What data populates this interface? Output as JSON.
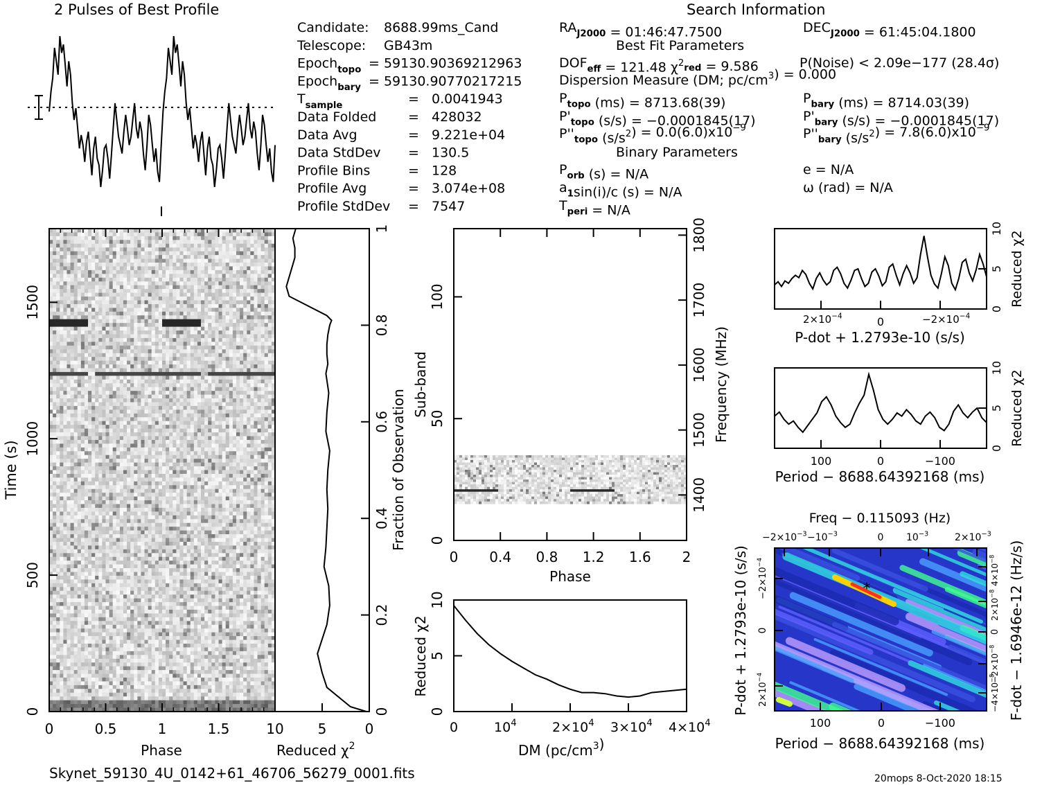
{
  "header": {
    "profile_title": "2 Pulses of Best Profile",
    "search_title": "Search Information",
    "best_fit_title": "Best Fit Parameters",
    "binary_title": "Binary Parameters"
  },
  "info_left": [
    {
      "label": "Candidate:",
      "value": "8688.99ms_Cand"
    },
    {
      "label": "Telescope:",
      "value": "GB43m"
    },
    {
      "label": "Epoch",
      "sub": "topo",
      "value": "= 59130.90369212963"
    },
    {
      "label": "Epoch",
      "sub": "bary",
      "value": "= 59130.90770217215"
    },
    {
      "label": "T",
      "sub": "sample",
      "eq": "=",
      "value": "0.0041943"
    },
    {
      "label": "Data Folded",
      "eq": "=",
      "value": "428032"
    },
    {
      "label": "Data Avg",
      "eq": "=",
      "value": "9.221e+04"
    },
    {
      "label": "Data StdDev",
      "eq": "=",
      "value": "130.5"
    },
    {
      "label": "Profile Bins",
      "eq": "=",
      "value": "128"
    },
    {
      "label": "Profile Avg",
      "eq": "=",
      "value": "3.074e+08"
    },
    {
      "label": "Profile StdDev",
      "eq": "=",
      "value": "7547"
    }
  ],
  "search_info": {
    "ra_label": "RA",
    "ra_sub": "J2000",
    "ra_value": "= 01:46:47.7500",
    "dec_label": "DEC",
    "dec_sub": "J2000",
    "dec_value": "= 61:45:04.1800",
    "dof_label": "DOF",
    "dof_sub": "eff",
    "dof_value": "= 121.48",
    "chi_label": "χ",
    "chi_sup": "2",
    "chi_sub": "red",
    "chi_value": "= 9.586",
    "pnoise": "P(Noise) < 2.09e−177   (28.4σ)",
    "dm_text": "Dispersion Measure (DM; pc/cm",
    "dm_sup": "3",
    "dm_tail": ") = 0.000",
    "ptopo_label": "P",
    "ptopo_sub": "topo",
    "ptopo_value": "(ms)  =   8713.68(39)",
    "pbary_label": "P",
    "pbary_sub": "bary",
    "pbary_value": "(ms)  =   8714.03(39)",
    "pdtopo_label": "P'",
    "pdtopo_sub": "topo",
    "pdtopo_value": "(s/s) = −0.0001845(17)",
    "pdbary_label": "P'",
    "pdbary_sub": "bary",
    "pdbary_value": "(s/s) = −0.0001845(17)",
    "pddtopo_label": "P''",
    "pddtopo_sub": "topo",
    "pddtopo_value": "(s/s",
    "pddtopo_sup": "2",
    "pddtopo_tail": ") = 0.0(6.0)x10",
    "pddtopo_exp": "−9",
    "pddbary_label": "P''",
    "pddbary_sub": "bary",
    "pddbary_value": "(s/s",
    "pddbary_sup": "2",
    "pddbary_tail": ") =   7.8(6.0)x10",
    "pddbary_exp": "−9",
    "porb_label": "P",
    "porb_sub": "orb",
    "porb_value": "(s) = N/A",
    "e_text": "e = N/A",
    "a1_label": "a",
    "a1_sub": "1",
    "a1_value": "sin(i)/c (s) = N/A",
    "omega_text": "ω (rad) = N/A",
    "tperi_label": "T",
    "tperi_sub": "peri",
    "tperi_value": "= N/A"
  },
  "footer": {
    "filename": "Skynet_59130_4U_0142+61_46706_56279_0001.fits",
    "stamp": "20mops   8-Oct-2020 18:15"
  },
  "chart_data": [
    {
      "type": "line",
      "id": "profile",
      "title": "2 Pulses of Best Profile",
      "xlim": [
        0,
        2
      ],
      "series": [
        {
          "values": [
            0.5,
            0.62,
            0.7,
            0.88,
            0.8,
            0.72,
            0.95,
            0.85,
            0.9,
            0.78,
            0.65,
            0.8,
            0.72,
            0.55,
            0.45,
            0.52,
            0.4,
            0.28,
            0.36,
            0.3,
            0.2,
            0.32,
            0.38,
            0.25,
            0.12,
            0.28,
            0.35,
            0.22,
            0.18,
            0.05,
            0.15,
            0.28,
            0.3,
            0.22,
            0.1,
            0.24,
            0.4,
            0.55,
            0.45,
            0.35,
            0.3,
            0.25,
            0.38,
            0.48,
            0.4,
            0.3,
            0.35,
            0.45,
            0.55,
            0.4,
            0.34,
            0.44,
            0.38,
            0.25,
            0.15,
            0.3,
            0.48,
            0.42,
            0.3,
            0.2,
            0.28,
            0.14,
            0.08,
            0.3
          ]
        }
      ]
    },
    {
      "type": "line",
      "id": "time_chi2",
      "xlabel": "Reduced χ2",
      "ylabel": "Fraction of Observation",
      "xlim": [
        10,
        0
      ],
      "ylim": [
        0,
        1
      ],
      "x": [
        0.3,
        2.0,
        4.5,
        5.0,
        5.5,
        4.5,
        4.2,
        4.3,
        4.8,
        4.6,
        4.5,
        4.4,
        4.5,
        4.4,
        4.2,
        4.6,
        4.5,
        4.3,
        4.6,
        4.4,
        4.5,
        4.5,
        4.4,
        4.2,
        4.0,
        4.5,
        8.5,
        8.8,
        8.2,
        7.9,
        7.9,
        8.1,
        7.8
      ],
      "y": [
        0,
        0.01,
        0.05,
        0.08,
        0.12,
        0.18,
        0.22,
        0.26,
        0.3,
        0.34,
        0.38,
        0.42,
        0.46,
        0.5,
        0.54,
        0.58,
        0.62,
        0.66,
        0.7,
        0.72,
        0.74,
        0.76,
        0.78,
        0.8,
        0.81,
        0.82,
        0.86,
        0.88,
        0.92,
        0.94,
        0.96,
        0.98,
        1.0
      ]
    },
    {
      "type": "heatmap",
      "id": "time_phase",
      "xlabel": "Phase",
      "ylabel": "Time (s)",
      "xlim": [
        0,
        2
      ],
      "ylim": [
        0,
        1770
      ],
      "x_ticks": [
        "0",
        "0.5",
        "1",
        "1.5"
      ],
      "y_ticks": [
        "0",
        "500",
        "1000",
        "1500"
      ],
      "right_ticks": [
        "0",
        "0.2",
        "0.4",
        "0.6",
        "0.8",
        "1"
      ],
      "bottom_ticks_right": [
        "10",
        "5",
        "0"
      ]
    },
    {
      "type": "heatmap",
      "id": "subband_phase",
      "xlabel": "Phase",
      "ylabel": "Sub-band",
      "y2label": "Frequency (MHz)",
      "xlim": [
        0,
        2
      ],
      "ylim": [
        0,
        128
      ],
      "x_ticks": [
        "0",
        "0.4",
        "0.8",
        "1.2",
        "1.6",
        "2"
      ],
      "y_ticks": [
        "0",
        "50",
        "100"
      ],
      "y2_ticks": [
        "1400",
        "1500",
        "1600",
        "1700",
        "1800"
      ],
      "band_range": [
        15,
        35
      ]
    },
    {
      "type": "line",
      "id": "dm_chi2",
      "xlabel": "DM (pc/cm3)",
      "ylabel": "Reduced χ2",
      "xlim": [
        0,
        40000
      ],
      "ylim": [
        0,
        10
      ],
      "x": [
        0,
        2000,
        4000,
        6000,
        8000,
        10000,
        12000,
        14000,
        16000,
        18000,
        20000,
        22000,
        24000,
        26000,
        28000,
        30000,
        32000,
        34000,
        36000,
        38000,
        40000
      ],
      "y": [
        9.5,
        8.2,
        7.0,
        6.0,
        5.2,
        4.5,
        3.9,
        3.3,
        2.9,
        2.4,
        2.0,
        1.7,
        1.7,
        1.6,
        1.4,
        1.3,
        1.4,
        1.7,
        1.8,
        1.9,
        2.0
      ]
    },
    {
      "type": "line",
      "id": "pdot_chi2",
      "xlabel": "P-dot + 1.2793e-10 (s/s)",
      "ylabel": "Reduced χ2",
      "ylim": [
        0,
        10
      ],
      "x_ticks": [
        "2×10",
        "0",
        "−2×10"
      ],
      "values": [
        3.0,
        3.4,
        2.8,
        3.5,
        3.2,
        3.8,
        4.2,
        3.9,
        4.8,
        4.3,
        3.2,
        2.5,
        3.8,
        4.5,
        3.6,
        3.0,
        3.4,
        4.8,
        5.2,
        4.4,
        3.2,
        2.6,
        3.6,
        4.8,
        5.0,
        3.8,
        2.8,
        3.2,
        4.6,
        5.0,
        4.1,
        2.9,
        3.4,
        5.2,
        5.6,
        4.2,
        3.0,
        4.4,
        5.4,
        4.5,
        3.2,
        3.9,
        6.8,
        9.1,
        6.5,
        4.2,
        3.1,
        2.6,
        4.4,
        6.5,
        5.4,
        3.2,
        2.4,
        3.8,
        5.8,
        6.2,
        4.5,
        3.5,
        4.9,
        6.8,
        5.6,
        4.0
      ]
    },
    {
      "type": "line",
      "id": "period_chi2",
      "xlabel": "Period − 8688.64392168 (ms)",
      "ylabel": "Reduced χ2",
      "ylim": [
        0,
        10
      ],
      "x_ticks": [
        "100",
        "0",
        "−100"
      ],
      "values": [
        4.0,
        4.5,
        3.6,
        3.0,
        3.4,
        2.6,
        2.0,
        2.8,
        3.6,
        4.4,
        5.8,
        6.4,
        5.4,
        4.0,
        3.2,
        2.6,
        3.0,
        4.4,
        5.6,
        6.6,
        9.2,
        7.2,
        4.8,
        3.6,
        3.0,
        3.6,
        4.4,
        4.0,
        4.8,
        4.2,
        3.4,
        3.0,
        4.0,
        4.5,
        3.8,
        2.6,
        2.2,
        3.0,
        4.6,
        5.4,
        4.4,
        3.8,
        4.5,
        5.0,
        3.8,
        3.2
      ]
    },
    {
      "type": "heatmap",
      "id": "p_pdot",
      "title": "Freq − 0.115093 (Hz)",
      "xlabel": "Period − 8688.64392168 (ms)",
      "ylabel": "P-dot + 1.2793e-10 (s/s)",
      "y2label": "F-dot − 1.6946e-12 (Hz/s)",
      "x_ticks": [
        "100",
        "0",
        "−100"
      ],
      "top_ticks": [
        "−2×10",
        "−10",
        "0",
        "10",
        "2×10"
      ],
      "top_exp": [
        "−3",
        "−3",
        "",
        "−3",
        "−3"
      ],
      "left_ticks": [
        "−2×10",
        "0",
        "2×10"
      ],
      "right_ticks": [
        "4×10",
        "2×10",
        "0",
        "−2×10",
        "−4×10"
      ]
    }
  ]
}
